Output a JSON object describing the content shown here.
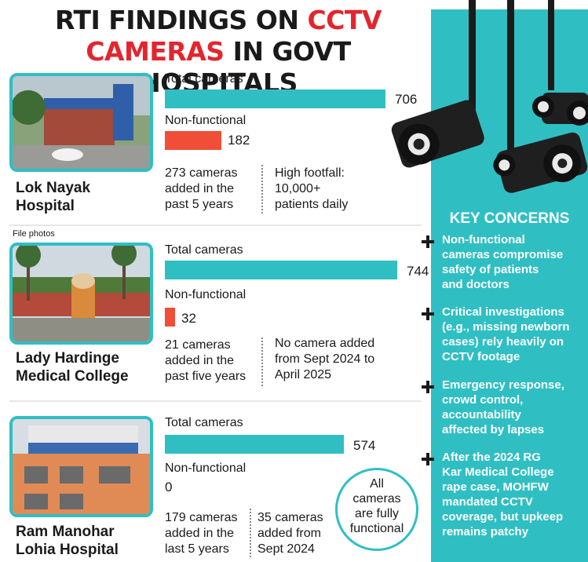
{
  "title": {
    "line1_a": "RTI FINDINGS ON ",
    "line1_b": "CCTV",
    "line2_a": "CAMERAS",
    "line2_b": " IN GOVT HOSPITALS"
  },
  "colors": {
    "total": "#2fbfc3",
    "non_functional": "#f04e37",
    "accent_red": "#e2262e",
    "panel": "#2fbfc3"
  },
  "file_photos": "File photos",
  "hospitals": [
    {
      "name_line1": "Lok Nayak",
      "name_line2": "Hospital",
      "total_label": "Total cameras",
      "total": "706",
      "nf_label": "Non-functional",
      "nf": "182",
      "note_left": [
        "273 cameras",
        "added in the",
        "past 5 years"
      ],
      "note_right": [
        "High footfall:",
        "10,000+",
        "patients daily"
      ]
    },
    {
      "name_line1": "Lady Hardinge",
      "name_line2": "Medical College",
      "total_label": "Total cameras",
      "total": "744",
      "nf_label": "Non-functional",
      "nf": "32",
      "note_left": [
        "21 cameras",
        "added in the",
        "past five years"
      ],
      "note_right": [
        "No camera added",
        "from Sept 2024 to",
        "April 2025"
      ]
    },
    {
      "name_line1": "Ram Manohar",
      "name_line2": "Lohia Hospital",
      "total_label": "Total cameras",
      "total": "574",
      "nf_label": "Non-functional",
      "nf": "0",
      "note_left": [
        "179 cameras",
        "added in the",
        "last 5 years"
      ],
      "note_right": [
        "35 cameras",
        "added from",
        "Sept 2024"
      ],
      "badge": [
        "All",
        "cameras",
        "are fully",
        "functional"
      ]
    }
  ],
  "chart_data": {
    "type": "bar",
    "categories": [
      "Lok Nayak Hospital",
      "Lady Hardinge Medical College",
      "Ram Manohar Lohia Hospital"
    ],
    "series": [
      {
        "name": "Total cameras",
        "values": [
          706,
          744,
          574
        ]
      },
      {
        "name": "Non-functional",
        "values": [
          182,
          32,
          0
        ]
      }
    ],
    "title": "RTI FINDINGS ON CCTV CAMERAS IN GOVT HOSPITALS",
    "orientation": "horizontal",
    "xlim": [
      0,
      744
    ]
  },
  "key_concerns": {
    "title": "KEY CONCERNS",
    "items": [
      [
        "Non-functional",
        "cameras compromise",
        "safety of patients",
        "and doctors"
      ],
      [
        "Critical investigations",
        "(e.g., missing newborn",
        "cases) rely heavily on",
        "CCTV footage"
      ],
      [
        "Emergency response,",
        "crowd control,",
        "accountability",
        "affected by lapses"
      ],
      [
        "After the 2024 RG",
        "Kar Medical College",
        "rape case, MOHFW",
        "mandated CCTV",
        "coverage, but upkeep",
        "remains patchy"
      ]
    ]
  }
}
